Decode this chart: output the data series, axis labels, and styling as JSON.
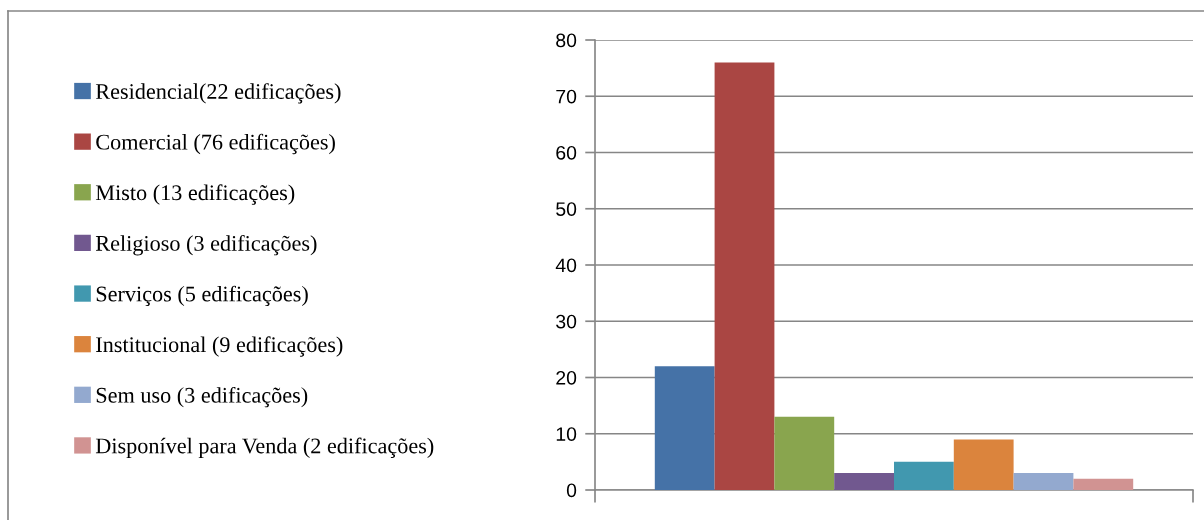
{
  "chart_data": {
    "type": "bar",
    "categories": [
      null
    ],
    "series": [
      {
        "name": "Residencial(22 edificações)",
        "color": "#4572a7",
        "values": [
          22
        ]
      },
      {
        "name": "Comercial (76 edificações)",
        "color": "#aa4643",
        "values": [
          76
        ]
      },
      {
        "name": "Misto (13 edificações)",
        "color": "#89a54e",
        "values": [
          13
        ]
      },
      {
        "name": "Religioso (3 edificações)",
        "color": "#71588f",
        "values": [
          3
        ]
      },
      {
        "name": "Serviços (5 edificações)",
        "color": "#4198af",
        "values": [
          5
        ]
      },
      {
        "name": "Institucional (9 edificações)",
        "color": "#db843d",
        "values": [
          9
        ]
      },
      {
        "name": "Sem uso (3 edificações)",
        "color": "#93a9cf",
        "values": [
          3
        ]
      },
      {
        "name": "Disponível para Venda (2 edificações)",
        "color": "#d19392",
        "values": [
          2
        ]
      }
    ],
    "ylim": [
      0,
      80
    ],
    "yticks": [
      0,
      10,
      20,
      30,
      40,
      50,
      60,
      70,
      80
    ],
    "grid": "y",
    "legend": "left"
  }
}
